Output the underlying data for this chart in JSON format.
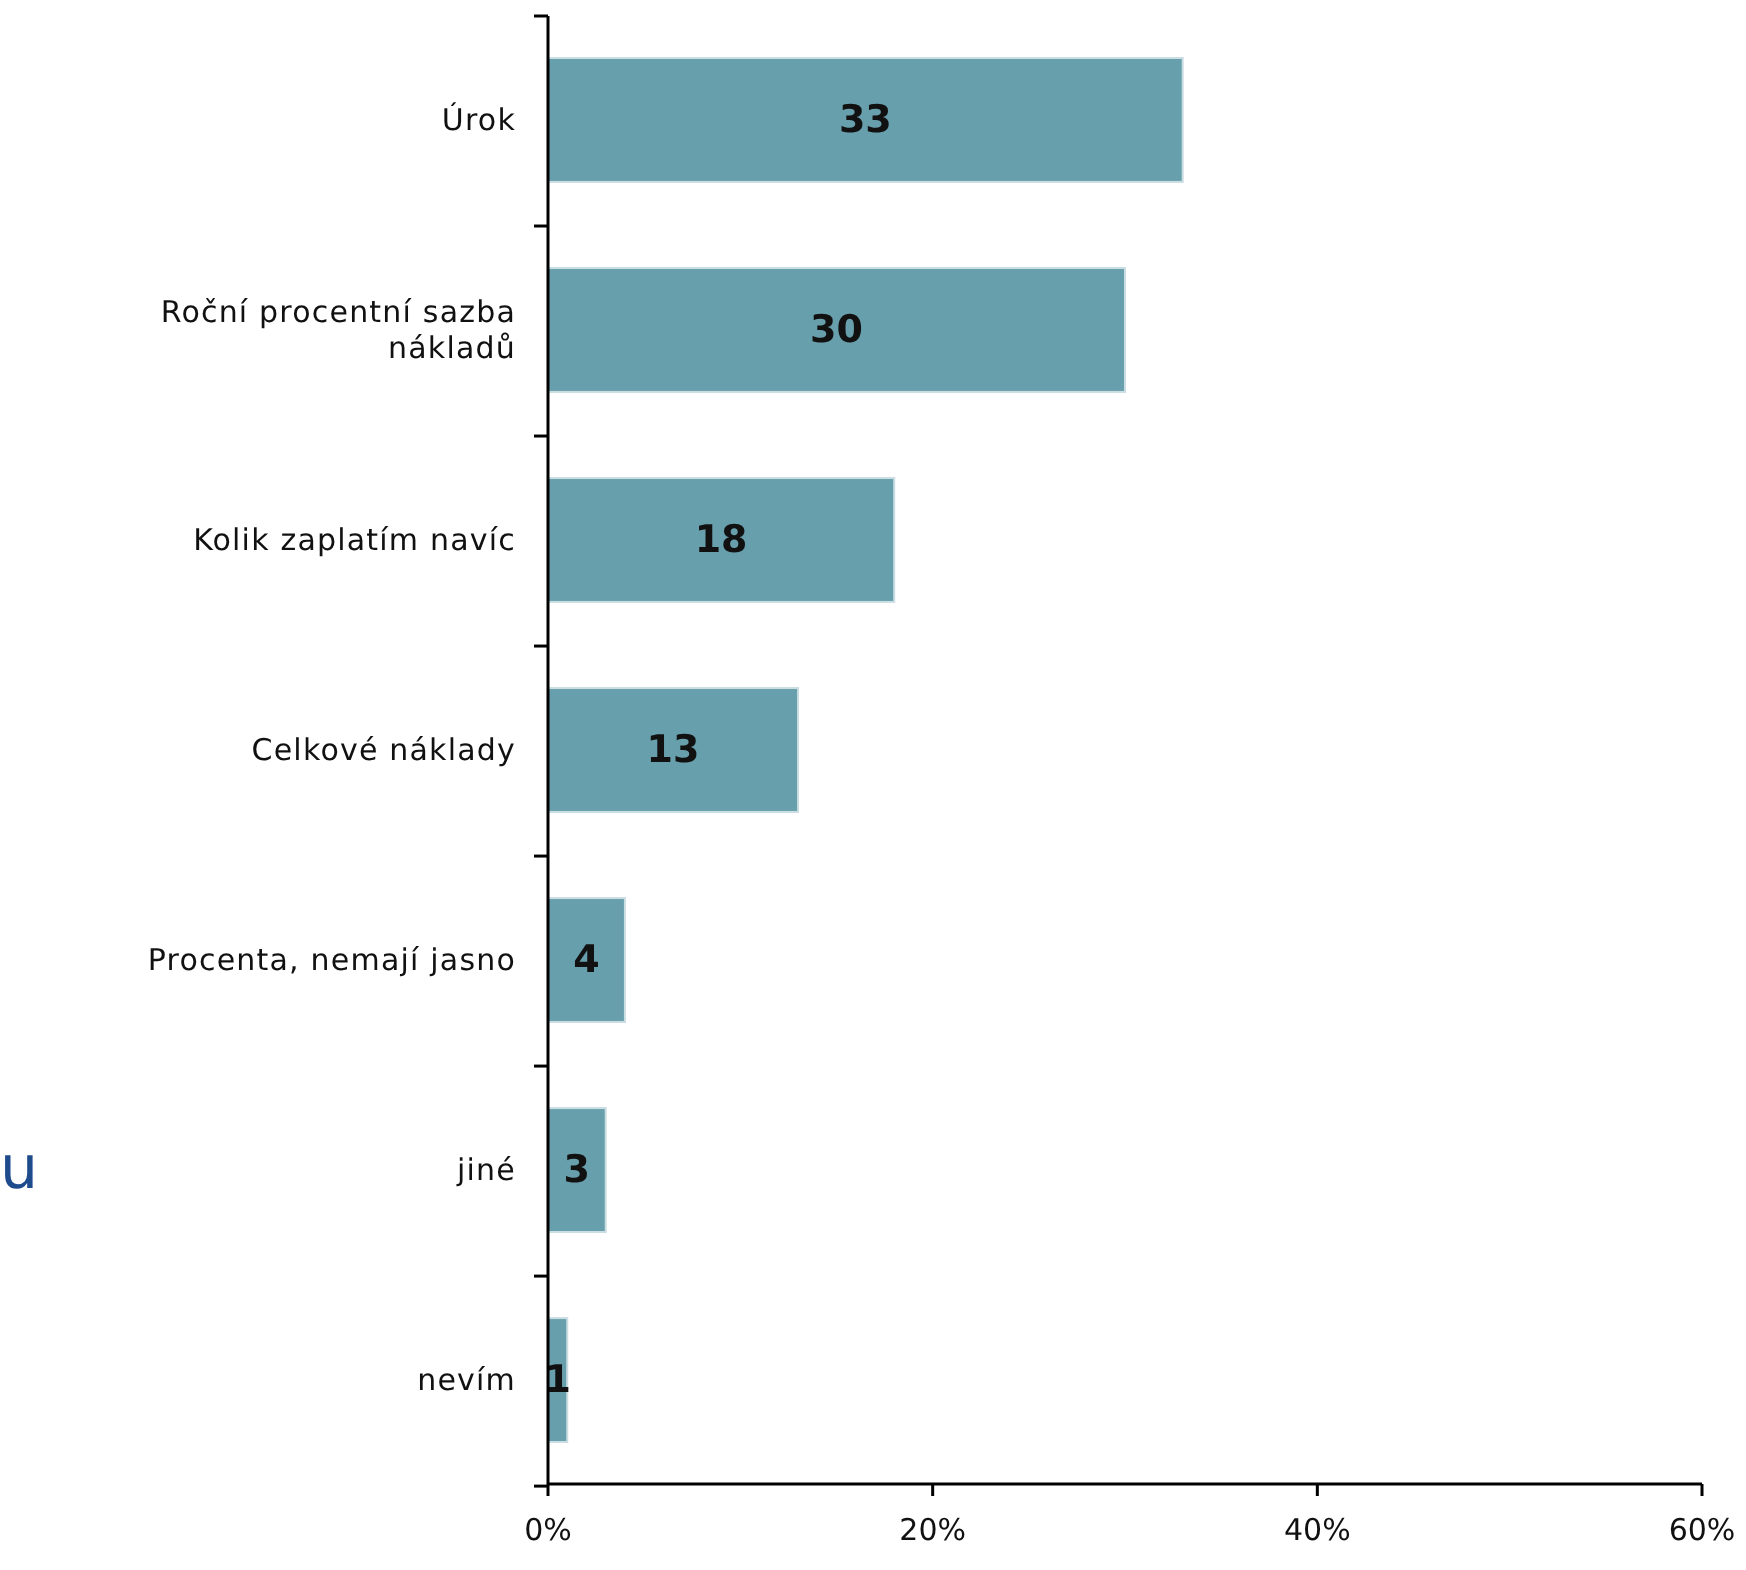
{
  "chart_data": {
    "type": "bar",
    "orientation": "horizontal",
    "categories": [
      "Úrok",
      "Roční procentní sazba nákladů",
      "Kolik zaplatím navíc",
      "Celkové náklady",
      "Procenta, nemají jasno",
      "jiné",
      "nevím"
    ],
    "values": [
      33,
      30,
      18,
      13,
      4,
      3,
      1
    ],
    "color": "#689fac",
    "data_labels": true,
    "xlim": [
      0,
      60
    ],
    "xticks": [
      {
        "value": 0,
        "label": "0%"
      },
      {
        "value": 20,
        "label": "20%"
      },
      {
        "value": 40,
        "label": "40%"
      },
      {
        "value": 60,
        "label": "60%"
      }
    ],
    "annotations": [
      "u"
    ]
  }
}
